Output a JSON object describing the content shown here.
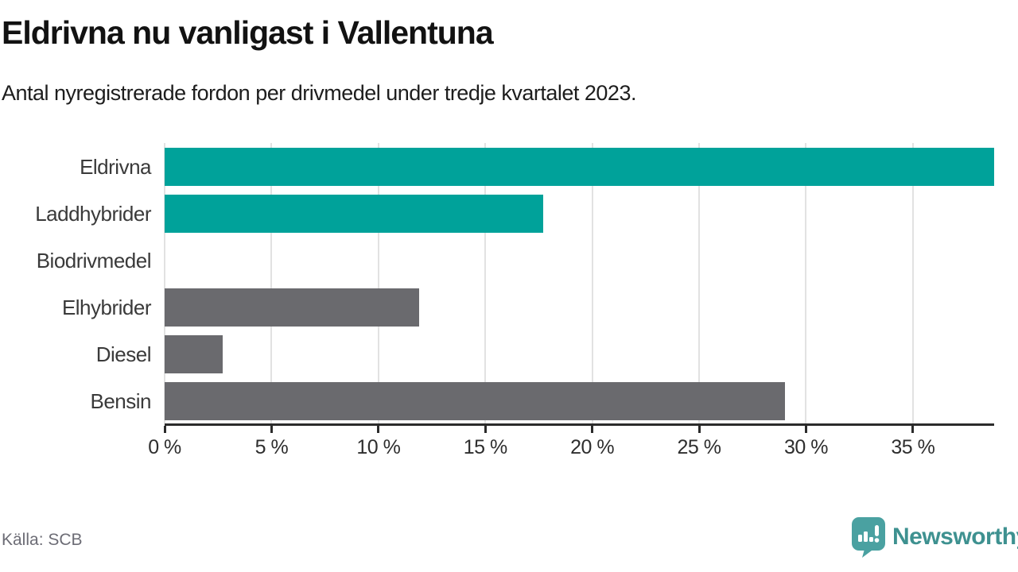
{
  "header": {
    "title": "Eldrivna nu vanligast i Vallentuna",
    "subtitle": "Antal nyregistrerade fordon per drivmedel under tredje kvartalet 2023."
  },
  "chart_data": {
    "type": "bar",
    "orientation": "horizontal",
    "title": "Eldrivna nu vanligast i Vallentuna",
    "subtitle": "Antal nyregistrerade fordon per drivmedel under tredje kvartalet 2023.",
    "categories": [
      "Eldrivna",
      "Laddhybrider",
      "Biodrivmedel",
      "Elhybrider",
      "Diesel",
      "Bensin"
    ],
    "values": [
      38.8,
      17.7,
      0,
      11.9,
      2.7,
      29.0
    ],
    "bar_colors": [
      "#00A29A",
      "#00A29A",
      "#6A6A6E",
      "#6A6A6E",
      "#6A6A6E",
      "#6A6A6E"
    ],
    "xlabel": "",
    "ylabel": "",
    "xlim": [
      0,
      38.8
    ],
    "xticks": [
      {
        "value": 0,
        "label": "0 %"
      },
      {
        "value": 5,
        "label": "5 %"
      },
      {
        "value": 10,
        "label": "10 %"
      },
      {
        "value": 15,
        "label": "15 %"
      },
      {
        "value": 20,
        "label": "20 %"
      },
      {
        "value": 25,
        "label": "25 %"
      },
      {
        "value": 30,
        "label": "30 %"
      },
      {
        "value": 35,
        "label": "35 %"
      }
    ],
    "grid": true,
    "legend": false
  },
  "colors": {
    "accent_teal": "#00A29A",
    "neutral_gray": "#6A6A6E",
    "gridline": "#E2E2E2",
    "axis": "#2B2B2B",
    "logo_bubble": "#4AA1A1",
    "logo_text": "#3E9190"
  },
  "footer": {
    "source": "Källa: SCB",
    "brand": "Newsworthy",
    "brand_icon": "newsworthy-speech-bubble-bar-chart-icon"
  }
}
